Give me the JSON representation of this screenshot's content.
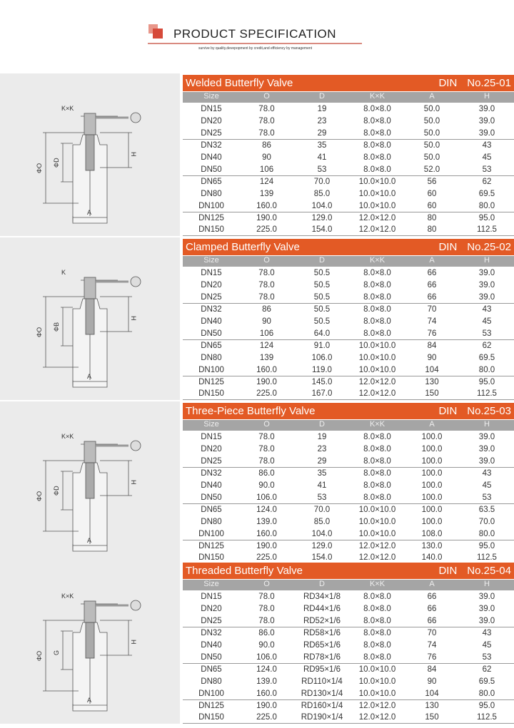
{
  "header": {
    "title": "PRODUCT SPECIFICATION",
    "subtitle": "survive by quality,devepopment by credit,and efficiency by management"
  },
  "colors": {
    "accent": "#e35a25",
    "column_header": "#a5a5a5",
    "drawing_bg": "#ebebeb"
  },
  "columns": [
    "Size",
    "O",
    "D",
    "K×K",
    "A",
    "H"
  ],
  "sections": [
    {
      "title": "Welded Butterfly Valve",
      "standard": "DIN",
      "number": "No.25-01",
      "labels": {
        "k": "K×K",
        "o": "ΦO",
        "d": "ΦD",
        "h": "H",
        "a": "A"
      },
      "rows": [
        [
          "DN15",
          "78.0",
          "19",
          "8.0×8.0",
          "50.0",
          "39.0"
        ],
        [
          "DN20",
          "78.0",
          "23",
          "8.0×8.0",
          "50.0",
          "39.0"
        ],
        [
          "DN25",
          "78.0",
          "29",
          "8.0×8.0",
          "50.0",
          "39.0"
        ],
        [
          "DN32",
          "86",
          "35",
          "8.0×8.0",
          "50.0",
          "43"
        ],
        [
          "DN40",
          "90",
          "41",
          "8.0×8.0",
          "50.0",
          "45"
        ],
        [
          "DN50",
          "106",
          "53",
          "8.0×8.0",
          "52.0",
          "53"
        ],
        [
          "DN65",
          "124",
          "70.0",
          "10.0×10.0",
          "56",
          "62"
        ],
        [
          "DN80",
          "139",
          "85.0",
          "10.0×10.0",
          "60",
          "69.5"
        ],
        [
          "DN100",
          "160.0",
          "104.0",
          "10.0×10.0",
          "60",
          "80.0"
        ],
        [
          "DN125",
          "190.0",
          "129.0",
          "12.0×12.0",
          "80",
          "95.0"
        ],
        [
          "DN150",
          "225.0",
          "154.0",
          "12.0×12.0",
          "80",
          "112.5"
        ]
      ]
    },
    {
      "title": "Clamped Butterfly Valve",
      "standard": "DIN",
      "number": "No.25-02",
      "labels": {
        "k": "K",
        "o": "ΦO",
        "d": "ΦB",
        "h": "H",
        "a": "A"
      },
      "rows": [
        [
          "DN15",
          "78.0",
          "50.5",
          "8.0×8.0",
          "66",
          "39.0"
        ],
        [
          "DN20",
          "78.0",
          "50.5",
          "8.0×8.0",
          "66",
          "39.0"
        ],
        [
          "DN25",
          "78.0",
          "50.5",
          "8.0×8.0",
          "66",
          "39.0"
        ],
        [
          "DN32",
          "86",
          "50.5",
          "8.0×8.0",
          "70",
          "43"
        ],
        [
          "DN40",
          "90",
          "50.5",
          "8.0×8.0",
          "74",
          "45"
        ],
        [
          "DN50",
          "106",
          "64.0",
          "8.0×8.0",
          "76",
          "53"
        ],
        [
          "DN65",
          "124",
          "91.0",
          "10.0×10.0",
          "84",
          "62"
        ],
        [
          "DN80",
          "139",
          "106.0",
          "10.0×10.0",
          "90",
          "69.5"
        ],
        [
          "DN100",
          "160.0",
          "119.0",
          "10.0×10.0",
          "104",
          "80.0"
        ],
        [
          "DN125",
          "190.0",
          "145.0",
          "12.0×12.0",
          "130",
          "95.0"
        ],
        [
          "DN150",
          "225.0",
          "167.0",
          "12.0×12.0",
          "150",
          "112.5"
        ]
      ]
    },
    {
      "title": "Three-Piece Butterfly Valve",
      "standard": "DIN",
      "number": "No.25-03",
      "labels": {
        "k": "K×K",
        "o": "ΦO",
        "d": "ΦD",
        "h": "H",
        "a": "A"
      },
      "rows": [
        [
          "DN15",
          "78.0",
          "19",
          "8.0×8.0",
          "100.0",
          "39.0"
        ],
        [
          "DN20",
          "78.0",
          "23",
          "8.0×8.0",
          "100.0",
          "39.0"
        ],
        [
          "DN25",
          "78.0",
          "29",
          "8.0×8.0",
          "100.0",
          "39.0"
        ],
        [
          "DN32",
          "86.0",
          "35",
          "8.0×8.0",
          "100.0",
          "43"
        ],
        [
          "DN40",
          "90.0",
          "41",
          "8.0×8.0",
          "100.0",
          "45"
        ],
        [
          "DN50",
          "106.0",
          "53",
          "8.0×8.0",
          "100.0",
          "53"
        ],
        [
          "DN65",
          "124.0",
          "70.0",
          "10.0×10.0",
          "100.0",
          "63.5"
        ],
        [
          "DN80",
          "139.0",
          "85.0",
          "10.0×10.0",
          "100.0",
          "70.0"
        ],
        [
          "DN100",
          "160.0",
          "104.0",
          "10.0×10.0",
          "108.0",
          "80.0"
        ],
        [
          "DN125",
          "190.0",
          "129.0",
          "12.0×12.0",
          "130.0",
          "95.0"
        ],
        [
          "DN150",
          "225.0",
          "154.0",
          "12.0×12.0",
          "140.0",
          "112.5"
        ]
      ]
    },
    {
      "title": "Threaded Butterfly Valve",
      "standard": "DIN",
      "number": "No.25-04",
      "labels": {
        "k": "K×K",
        "o": "ΦO",
        "d": "G",
        "h": "H",
        "a": "A"
      },
      "rows": [
        [
          "DN15",
          "78.0",
          "RD34×1/8",
          "8.0×8.0",
          "66",
          "39.0"
        ],
        [
          "DN20",
          "78.0",
          "RD44×1/6",
          "8.0×8.0",
          "66",
          "39.0"
        ],
        [
          "DN25",
          "78.0",
          "RD52×1/6",
          "8.0×8.0",
          "66",
          "39.0"
        ],
        [
          "DN32",
          "86.0",
          "RD58×1/6",
          "8.0×8.0",
          "70",
          "43"
        ],
        [
          "DN40",
          "90.0",
          "RD65×1/6",
          "8.0×8.0",
          "74",
          "45"
        ],
        [
          "DN50",
          "106.0",
          "RD78×1/6",
          "8.0×8.0",
          "76",
          "53"
        ],
        [
          "DN65",
          "124.0",
          "RD95×1/6",
          "10.0×10.0",
          "84",
          "62"
        ],
        [
          "DN80",
          "139.0",
          "RD110×1/4",
          "10.0×10.0",
          "90",
          "69.5"
        ],
        [
          "DN100",
          "160.0",
          "RD130×1/4",
          "10.0×10.0",
          "104",
          "80.0"
        ],
        [
          "DN125",
          "190.0",
          "RD160×1/4",
          "12.0×12.0",
          "130",
          "95.0"
        ],
        [
          "DN150",
          "225.0",
          "RD190×1/4",
          "12.0×12.0",
          "150",
          "112.5"
        ]
      ]
    }
  ]
}
